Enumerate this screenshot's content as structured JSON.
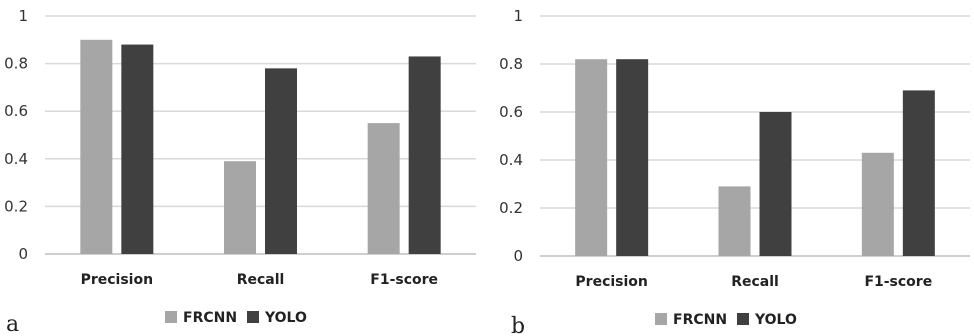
{
  "series_colors": {
    "FRCNN": "#a6a6a6",
    "YOLO": "#404040"
  },
  "chart_data": [
    {
      "type": "bar",
      "panel_label": "a",
      "categories": [
        "Precision",
        "Recall",
        "F1-score"
      ],
      "series": [
        {
          "name": "FRCNN",
          "values": [
            0.9,
            0.39,
            0.55
          ]
        },
        {
          "name": "YOLO",
          "values": [
            0.88,
            0.78,
            0.83
          ]
        }
      ],
      "ylim": [
        0,
        1
      ],
      "yticks": [
        0,
        0.2,
        0.4,
        0.6,
        0.8,
        1
      ],
      "ytick_labels": [
        "0",
        "0.2",
        "0.4",
        "0.6",
        "0.8",
        "1"
      ],
      "grid": true,
      "legend": "bottom"
    },
    {
      "type": "bar",
      "panel_label": "b",
      "categories": [
        "Precision",
        "Recall",
        "F1-score"
      ],
      "series": [
        {
          "name": "FRCNN",
          "values": [
            0.82,
            0.29,
            0.43
          ]
        },
        {
          "name": "YOLO",
          "values": [
            0.82,
            0.6,
            0.69
          ]
        }
      ],
      "ylim": [
        0,
        1
      ],
      "yticks": [
        0,
        0.2,
        0.4,
        0.6,
        0.8,
        1
      ],
      "ytick_labels": [
        "0",
        "0.2",
        "0.4",
        "0.6",
        "0.8",
        "1"
      ],
      "grid": true,
      "legend": "bottom"
    }
  ]
}
